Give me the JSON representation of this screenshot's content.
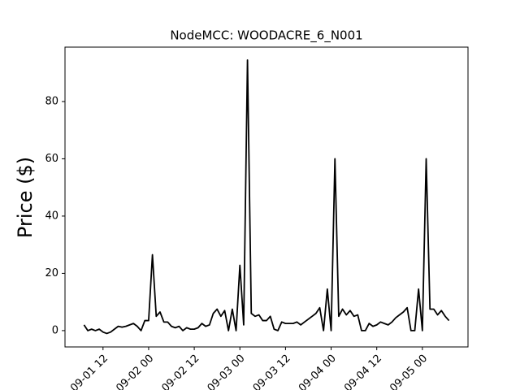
{
  "chart_data": {
    "type": "line",
    "title": "NodeMCC: WOODACRE_6_N001",
    "y_label": "Price ($)",
    "x": [
      "09-01 07",
      "09-01 08",
      "09-01 09",
      "09-01 10",
      "09-01 11",
      "09-01 12",
      "09-01 13",
      "09-01 14",
      "09-01 15",
      "09-01 16",
      "09-01 17",
      "09-01 18",
      "09-01 19",
      "09-01 20",
      "09-01 21",
      "09-01 22",
      "09-01 23",
      "09-02 00",
      "09-02 01",
      "09-02 02",
      "09-02 03",
      "09-02 04",
      "09-02 05",
      "09-02 06",
      "09-02 07",
      "09-02 08",
      "09-02 09",
      "09-02 10",
      "09-02 11",
      "09-02 12",
      "09-02 13",
      "09-02 14",
      "09-02 15",
      "09-02 16",
      "09-02 17",
      "09-02 18",
      "09-02 19",
      "09-02 20",
      "09-02 21",
      "09-02 22",
      "09-02 23",
      "09-03 00",
      "09-03 01",
      "09-03 02",
      "09-03 03",
      "09-03 04",
      "09-03 05",
      "09-03 06",
      "09-03 07",
      "09-03 08",
      "09-03 09",
      "09-03 10",
      "09-03 11",
      "09-03 12",
      "09-03 13",
      "09-03 14",
      "09-03 15",
      "09-03 16",
      "09-03 17",
      "09-03 18",
      "09-03 19",
      "09-03 20",
      "09-03 21",
      "09-03 22",
      "09-03 23",
      "09-04 00",
      "09-04 01",
      "09-04 02",
      "09-04 03",
      "09-04 04",
      "09-04 05",
      "09-04 06",
      "09-04 07",
      "09-04 08",
      "09-04 09",
      "09-04 10",
      "09-04 11",
      "09-04 12",
      "09-04 13",
      "09-04 14",
      "09-04 15",
      "09-04 16",
      "09-04 17",
      "09-04 18",
      "09-04 19",
      "09-04 20",
      "09-04 21",
      "09-04 22",
      "09-04 23",
      "09-05 00",
      "09-05 01",
      "09-05 02",
      "09-05 03",
      "09-05 04",
      "09-05 05",
      "09-05 06",
      "09-05 07"
    ],
    "series": [
      {
        "name": "Price",
        "color": "#000000",
        "values": [
          2,
          0,
          0.5,
          0,
          0.5,
          -0.5,
          -1,
          -0.5,
          0.5,
          1.5,
          1.2,
          1.5,
          2,
          2.5,
          1.5,
          0,
          3.5,
          3.5,
          26.5,
          5,
          6.5,
          3,
          3,
          1.5,
          1,
          1.5,
          0,
          1,
          0.5,
          0.5,
          1,
          2.5,
          1.5,
          2,
          6,
          7.5,
          5,
          7,
          0,
          7.5,
          0,
          22.8,
          2,
          94.5,
          6,
          5,
          5.5,
          3.5,
          3.5,
          5,
          0.5,
          0,
          3,
          2.5,
          2.5,
          2.5,
          3,
          2,
          3,
          4,
          5,
          6,
          8,
          0,
          14.5,
          0,
          60,
          5,
          7.5,
          5.5,
          7,
          5,
          5.5,
          0,
          0,
          2.5,
          1.5,
          2,
          3,
          2.5,
          2,
          3,
          4.5,
          5.5,
          6.5,
          8,
          0,
          0,
          14.5,
          0,
          60,
          7.5,
          7.5,
          5.5,
          7,
          5,
          3.5
        ]
      }
    ],
    "xlim": [
      "09-01 02",
      "09-05 12"
    ],
    "xticks": [
      "09-01 12",
      "09-02 00",
      "09-02 12",
      "09-03 00",
      "09-03 12",
      "09-04 00",
      "09-04 12",
      "09-05 00"
    ],
    "ylim": [
      -5.7,
      99
    ],
    "yticks": [
      0,
      20,
      40,
      60,
      80
    ],
    "grid": false
  }
}
